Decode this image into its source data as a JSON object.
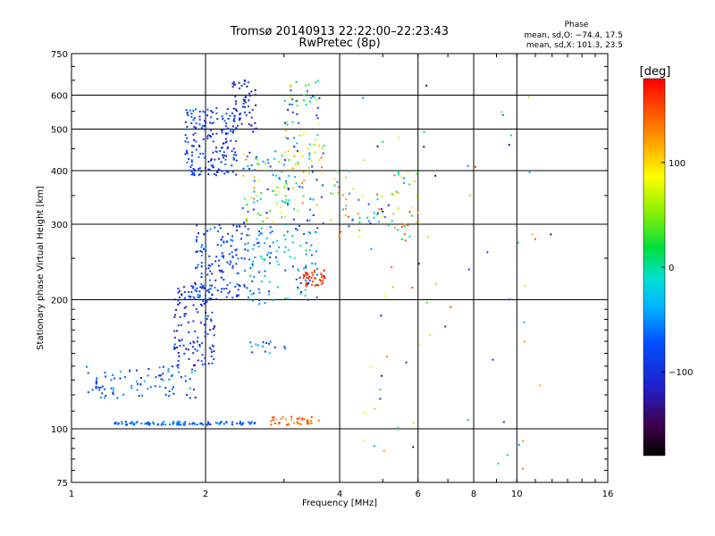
{
  "chart_data": {
    "type": "scatter",
    "title": "Tromsø 20140913 22:22:00–22:23:43",
    "subtitle": "RwPretec (8p)",
    "xlabel": "Frequency [MHz]",
    "ylabel": "Stationary phase Virtual Height [km]",
    "x_scale": "log",
    "y_scale": "log",
    "xlim": [
      1,
      16
    ],
    "ylim": [
      75,
      750
    ],
    "x_ticks": [
      {
        "v": 1,
        "label": "1"
      },
      {
        "v": 2,
        "label": "2"
      },
      {
        "v": 4,
        "label": "4"
      },
      {
        "v": 6,
        "label": "6"
      },
      {
        "v": 8,
        "label": "8"
      },
      {
        "v": 10,
        "label": "10"
      },
      {
        "v": 16,
        "label": "16"
      }
    ],
    "y_ticks": [
      {
        "v": 75,
        "label": "75"
      },
      {
        "v": 100,
        "label": "100"
      },
      {
        "v": 200,
        "label": "200"
      },
      {
        "v": 300,
        "label": "300"
      },
      {
        "v": 400,
        "label": "400"
      },
      {
        "v": 500,
        "label": "500"
      },
      {
        "v": 600,
        "label": "600"
      },
      {
        "v": 750,
        "label": "750"
      }
    ],
    "grid": true,
    "stats": {
      "heading": "Phase",
      "line_o": "mean, sd,O: −74.4, 17.5",
      "line_x": "mean, sd,X: 101.3, 23.5"
    },
    "colorbar": {
      "label": "[deg]",
      "range": [
        -180,
        180
      ],
      "ticks": [
        {
          "v": 100,
          "label": "100"
        },
        {
          "v": 0,
          "label": "0"
        },
        {
          "v": -100,
          "label": "−100"
        }
      ]
    },
    "clusters": [
      {
        "x": [
          1.25,
          2.6
        ],
        "y": [
          102,
          104
        ],
        "phase": [
          -90,
          -40
        ],
        "n": 110
      },
      {
        "x": [
          1.08,
          1.9
        ],
        "y": [
          118,
          140
        ],
        "phase": [
          -110,
          -30
        ],
        "n": 90
      },
      {
        "x": [
          1.7,
          2.1
        ],
        "y": [
          140,
          220
        ],
        "phase": [
          -130,
          -70
        ],
        "n": 130
      },
      {
        "x": [
          1.9,
          2.5
        ],
        "y": [
          200,
          300
        ],
        "phase": [
          -120,
          -50
        ],
        "n": 150
      },
      {
        "x": [
          1.8,
          2.35
        ],
        "y": [
          390,
          560
        ],
        "phase": [
          -120,
          -60
        ],
        "n": 180
      },
      {
        "x": [
          2.3,
          2.6
        ],
        "y": [
          480,
          650
        ],
        "phase": [
          -140,
          -80
        ],
        "n": 60
      },
      {
        "x": [
          2.5,
          3.6
        ],
        "y": [
          195,
          300
        ],
        "phase": [
          -110,
          20
        ],
        "n": 120
      },
      {
        "x": [
          2.4,
          3.7
        ],
        "y": [
          300,
          450
        ],
        "phase": [
          -120,
          140
        ],
        "n": 140
      },
      {
        "x": [
          3.0,
          3.7
        ],
        "y": [
          440,
          650
        ],
        "phase": [
          -130,
          120
        ],
        "n": 60
      },
      {
        "x": [
          3.3,
          3.7
        ],
        "y": [
          215,
          235
        ],
        "phase": [
          150,
          170
        ],
        "n": 40
      },
      {
        "x": [
          2.8,
          3.6
        ],
        "y": [
          102,
          107
        ],
        "phase": [
          120,
          160
        ],
        "n": 40
      },
      {
        "x": [
          3.8,
          6.0
        ],
        "y": [
          280,
          400
        ],
        "phase": [
          -120,
          160
        ],
        "n": 80
      },
      {
        "x": [
          4.5,
          12
        ],
        "y": [
          80,
          650
        ],
        "phase": [
          -150,
          170
        ],
        "n": 70
      },
      {
        "x": [
          2.4,
          3.1
        ],
        "y": [
          150,
          160
        ],
        "phase": [
          -100,
          -20
        ],
        "n": 15
      }
    ]
  }
}
